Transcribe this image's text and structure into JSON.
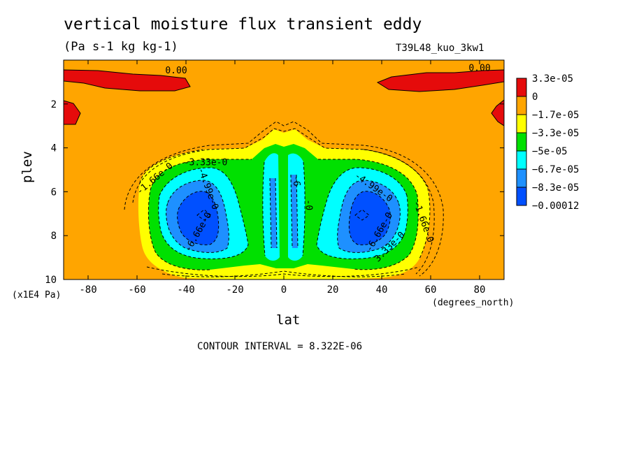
{
  "title": "vertical moisture flux transient eddy",
  "units": "(Pa s-1 kg kg-1)",
  "run_id": "T39L48_kuo_3kw1",
  "x_units": "(degrees_north)",
  "y_scale_label": "(x1E4 Pa)",
  "contour_interval": "CONTOUR INTERVAL = 8.322E-06",
  "colors": {
    "red": "#e50b0b",
    "orange": "#ffa500",
    "yellow": "#ffff00",
    "green": "#00e000",
    "cyan": "#00ffff",
    "sky": "#1e90ff",
    "blue": "#0050ff"
  },
  "chart_data": {
    "type": "contour",
    "xlabel": "lat",
    "ylabel": "plev",
    "xlim": [
      -90,
      90
    ],
    "ylim": [
      10,
      0
    ],
    "x_ticks": [
      "-80",
      "-60",
      "-40",
      "-20",
      "0",
      "20",
      "40",
      "60",
      "80"
    ],
    "y_ticks": [
      "2",
      "4",
      "6",
      "8",
      "10"
    ],
    "legend": {
      "placement": "right",
      "entries": [
        {
          "label": "3.3e-05",
          "color": "#e50b0b"
        },
        {
          "label": "0",
          "color": "#ffa500"
        },
        {
          "label": "−1.7e-05",
          "color": "#ffff00"
        },
        {
          "label": "−3.3e-05",
          "color": "#00e000"
        },
        {
          "label": "−5e-05",
          "color": "#00ffff"
        },
        {
          "label": "−6.7e-05",
          "color": "#1e90ff"
        },
        {
          "label": "−8.3e-05",
          "color": "#0050ff"
        },
        {
          "label": "−0.00012",
          "color": ""
        }
      ]
    },
    "contour_labels": [
      {
        "text": "0.00",
        "x": -44,
        "y": 0.6,
        "rot": 0
      },
      {
        "text": "0.00",
        "x": 80,
        "y": 0.5,
        "rot": 0
      },
      {
        "text": "-1.66e-0",
        "x": -52,
        "y": 5.5,
        "rot": -40
      },
      {
        "text": "-3.33e-0",
        "x": -32,
        "y": 4.8,
        "rot": 0
      },
      {
        "text": "-4.99e-0",
        "x": -32,
        "y": 5.9,
        "rot": 70
      },
      {
        "text": "-6.66e-0",
        "x": -34,
        "y": 7.9,
        "rot": -60
      },
      {
        "text": "-4.99e-0",
        "x": 36,
        "y": 5.9,
        "rot": 35
      },
      {
        "text": "-6.66e-0",
        "x": 40,
        "y": 7.9,
        "rot": -60
      },
      {
        "text": "-1.66e-0",
        "x": 56,
        "y": 7.4,
        "rot": 70
      },
      {
        "text": "3.33e-0",
        "x": 44,
        "y": 8.6,
        "rot": -45
      },
      {
        "text": "-6",
        "x": 4,
        "y": 5.5,
        "rot": 90
      },
      {
        "text": "-0",
        "x": 9,
        "y": 6.6,
        "rot": 90
      }
    ]
  }
}
